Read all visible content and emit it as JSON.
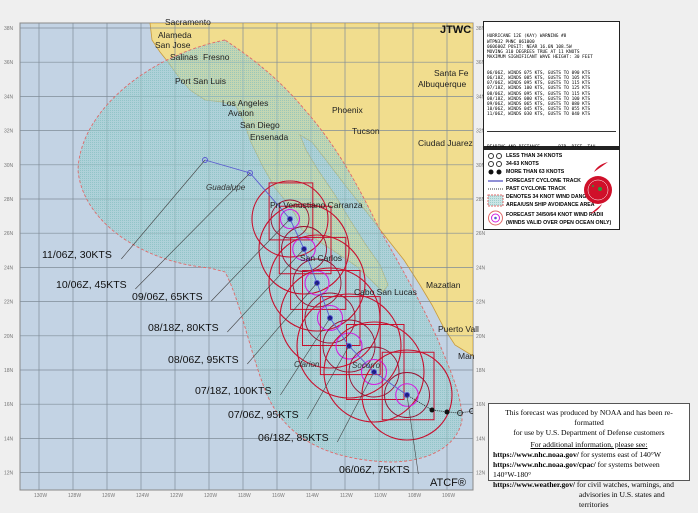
{
  "agency_label": "JTWC",
  "software_label": "ATCF®",
  "colors": {
    "ocean": "#c3d3e4",
    "land": "#f1dd8e",
    "danger_area": "#9fd0d0",
    "radii_red": "#c8102e",
    "radii_magenta": "#d020e0",
    "track": "#5a5ad0"
  },
  "axes": {
    "lat_labels": [
      "38N",
      "36N",
      "34N",
      "32N",
      "30N",
      "28N",
      "26N",
      "24N",
      "22N",
      "20N",
      "18N",
      "16N",
      "14N",
      "12N"
    ],
    "lon_labels": [
      "130W",
      "128W",
      "126W",
      "124W",
      "122W",
      "120W",
      "118W",
      "116W",
      "114W",
      "112W",
      "110W",
      "108W",
      "106W"
    ]
  },
  "places": {
    "cities": [
      "Sacramento",
      "Alameda",
      "San Jose",
      "Salinas",
      "Fresno",
      "Port San Luis",
      "Los Angeles",
      "Avalon",
      "San Diego",
      "Ensenada",
      "Phoenix",
      "Tucson",
      "Santa Fe",
      "Albuquerque",
      "Ciudad Juarez",
      "Prt Venustiano Carranza",
      "San Carlos",
      "Cabo San Lucas",
      "Mazatlan",
      "Puerto Vall",
      "Man"
    ],
    "islands": [
      "Guadalupe",
      "Clarion",
      "Socorro"
    ]
  },
  "forecast_labels": [
    "11/06Z, 30KTS",
    "10/06Z, 45KTS",
    "09/06Z, 65KTS",
    "08/18Z, 80KTS",
    "08/06Z, 95KTS",
    "07/18Z, 100KTS",
    "07/06Z, 95KTS",
    "06/18Z, 85KTS",
    "06/06Z, 75KTS"
  ],
  "warning": {
    "header": [
      "HURRICANE 12E (KAY) WARNING #8",
      "WTPN32 PHNC 061000",
      "060600Z POSIT: NEAR 16.6N 108.5W",
      "MOVING 310 DEGREES TRUE AT 11 KNOTS",
      "MAXIMUM SIGNIFICANT WAVE HEIGHT: 30 FEET"
    ],
    "forecasts": [
      "06/06Z, WINDS 075 KTS, GUSTS TO 090 KTS",
      "06/18Z, WINDS 085 KTS, GUSTS TO 105 KTS",
      "07/06Z, WINDS 095 KTS, GUSTS TO 115 KTS",
      "07/18Z, WINDS 100 KTS, GUSTS TO 125 KTS",
      "08/06Z, WINDS 095 KTS, GUSTS TO 115 KTS",
      "08/18Z, WINDS 080 KTS, GUSTS TO 100 KTS",
      "09/06Z, WINDS 065 KTS, GUSTS TO 080 KTS",
      "10/06Z, WINDS 045 KTS, GUSTS TO 055 KTS",
      "11/06Z, WINDS 030 KTS, GUSTS TO 040 KTS"
    ],
    "table_header": "BEARING AND DISTANCE       DIR  DIST  TAU",
    "table_subheader": "                                (NM)  (HRS)",
    "rows": [
      "CABO_SAN_LUCAS            160   386    0",
      "MANZANILLO                240   280    0",
      "PUERTO_VALLARTA           219   305    0",
      "SOCORRO_ISLAND            131   231    0"
    ]
  },
  "legend": {
    "items": [
      "LESS THAN 34 KNOTS",
      "34-63 KNOTS",
      "MORE THAN 63 KNOTS",
      "FORECAST CYCLONE TRACK",
      "PAST CYCLONE TRACK",
      "DENOTES 34 KNOT WIND DANGER",
      "AREA/USN SHIP AVOIDANCE AREA",
      "FORECAST 34/50/64 KNOT WIND RADII",
      "(WINDS VALID OVER OPEN OCEAN ONLY)"
    ]
  },
  "notice": {
    "line1": "This forecast was produced by NOAA and has been re-formatted",
    "line2": "for use by U.S. Department of Defense customers",
    "line3": "For additional information, please see:",
    "links": [
      {
        "url": "https://www.nhc.noaa.gov/",
        "desc": "for systems east of 140°W"
      },
      {
        "url": "https://www.nhc.noaa.gov/cpac/",
        "desc": "for systems between 140°W-180°"
      },
      {
        "url": "https://www.weather.gov/",
        "desc": "for civil watches, warnings, and"
      }
    ],
    "line_last": "advisories in U.S. states and territories"
  }
}
